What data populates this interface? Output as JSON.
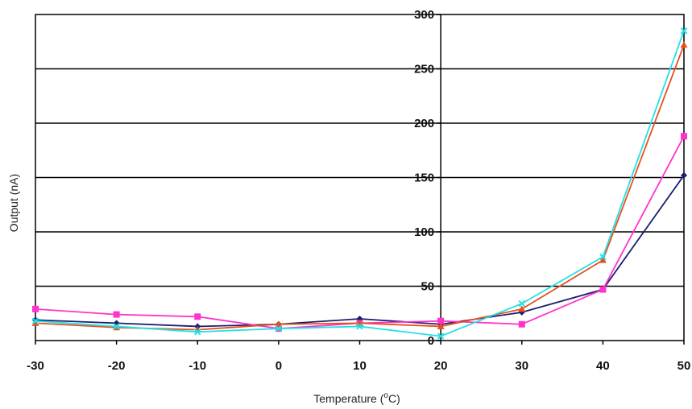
{
  "chart_data": {
    "type": "line",
    "xlabel_main": "Temperature (",
    "xlabel_sup": "o",
    "xlabel_end": "C)",
    "ylabel": "Output (nA)",
    "x": [
      -30,
      -20,
      -10,
      0,
      10,
      20,
      30,
      40,
      50
    ],
    "xlim": [
      -30,
      50
    ],
    "ylim": [
      0,
      300
    ],
    "yticks": [
      0,
      50,
      100,
      150,
      200,
      250,
      300
    ],
    "grid": "horizontal",
    "legend": "none",
    "series": [
      {
        "color": "#1a1f6e",
        "marker": "diamond",
        "values": [
          19,
          16,
          13,
          15,
          20,
          15,
          26,
          47,
          152
        ]
      },
      {
        "color": "#ff33cc",
        "marker": "square",
        "values": [
          29,
          24,
          22,
          11,
          16,
          18,
          15,
          47,
          188
        ]
      },
      {
        "color": "#e8501e",
        "marker": "triangle",
        "values": [
          16,
          12,
          10,
          15,
          16,
          13,
          29,
          74,
          272
        ]
      },
      {
        "color": "#22e0e6",
        "marker": "x",
        "values": [
          18,
          13,
          8,
          11,
          13,
          4,
          34,
          77,
          285
        ]
      }
    ]
  }
}
